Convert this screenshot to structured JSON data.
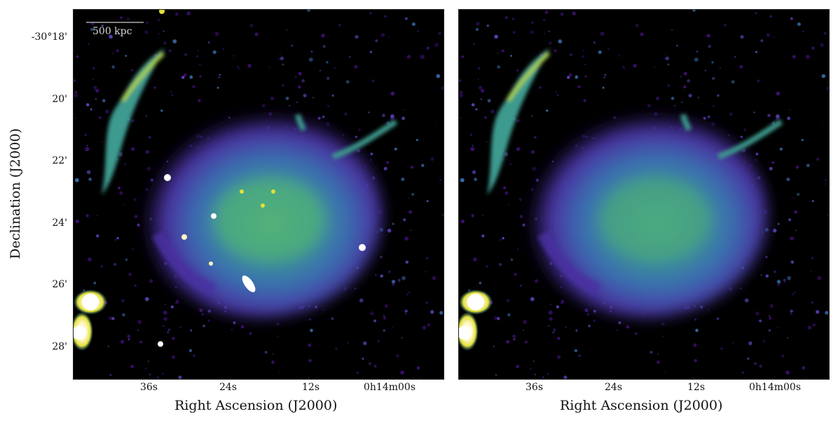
{
  "figure": {
    "y_axis": {
      "label": "Declination (J2000)",
      "ticks": [
        "-30°18'",
        "20'",
        "22'",
        "24'",
        "26'",
        "28'"
      ]
    },
    "x_axis": {
      "label": "Right Ascension (J2000)",
      "ticks": [
        "36s",
        "24s",
        "12s",
        "0h14m00s"
      ]
    },
    "scale_bar": {
      "label": "500 kpc"
    },
    "colormap": [
      "#000000",
      "#3b0f70",
      "#5a3fb0",
      "#3a6fb0",
      "#3c9a8e",
      "#6cc06a",
      "#e3e03a",
      "#ffffff"
    ],
    "panels": [
      {
        "id": "left",
        "description": "with compact sources"
      },
      {
        "id": "right",
        "description": "compact sources subtracted"
      }
    ]
  }
}
